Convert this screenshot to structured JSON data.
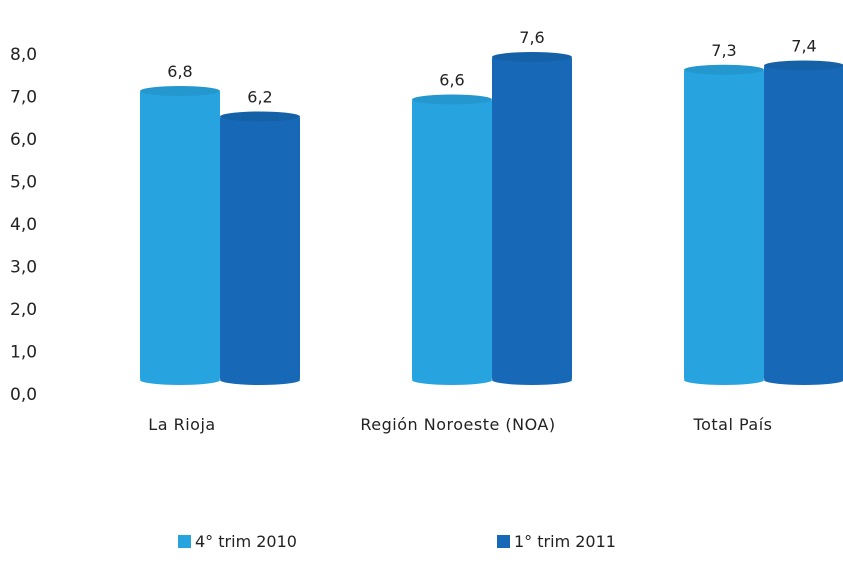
{
  "chart_data": {
    "type": "bar",
    "categories": [
      "La Rioja",
      "Región Noroeste (NOA)",
      "Total País"
    ],
    "series": [
      {
        "name": "4° trim 2010",
        "values": [
          6.8,
          6.6,
          7.3
        ],
        "labels": [
          "6,8",
          "6,6",
          "7,3"
        ],
        "color": "#27a4e0"
      },
      {
        "name": "1° trim 2011",
        "values": [
          6.2,
          7.6,
          7.4
        ],
        "labels": [
          "6,2",
          "7,6",
          "7,4"
        ],
        "color": "#1769b7"
      }
    ],
    "yticks": [
      "0,0",
      "1,0",
      "2,0",
      "3,0",
      "4,0",
      "5,0",
      "6,0",
      "7,0",
      "8,0"
    ],
    "ylim": [
      0,
      8
    ],
    "title": "",
    "xlabel": "",
    "ylabel": "",
    "grid": false,
    "legend_position": "bottom"
  }
}
